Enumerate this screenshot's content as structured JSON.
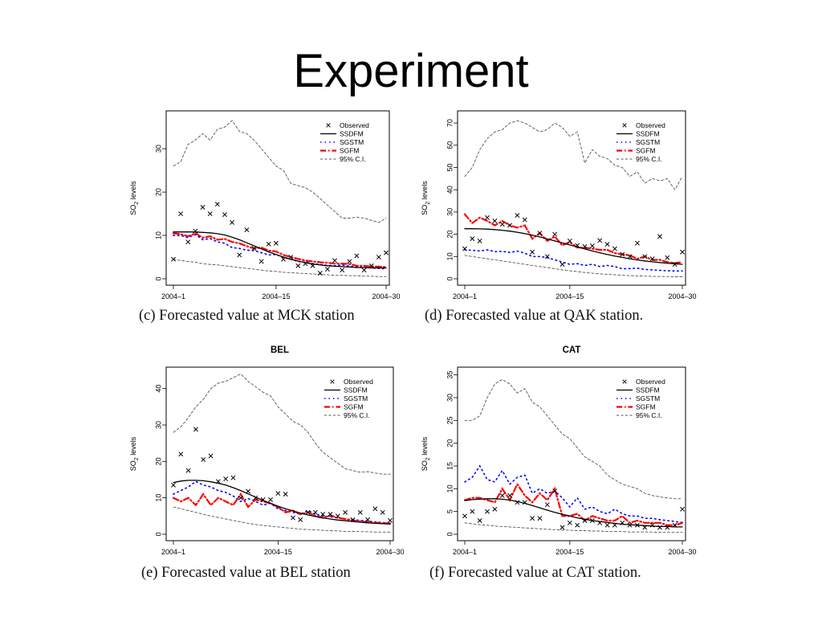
{
  "slide": {
    "title": "Experiment"
  },
  "chart_data": [
    {
      "type": "line",
      "panel_title": "",
      "caption": "(c) Forecasted value at MCK station",
      "ylabel_main": "SO",
      "ylabel_sub": "2",
      "ylabel_rest": " levels",
      "xlim": [
        1,
        30
      ],
      "ylim": [
        0,
        38
      ],
      "yticks": [
        0,
        10,
        20,
        30
      ],
      "xticks": [
        1,
        15,
        30
      ],
      "xticklabels": [
        "2004–1",
        "2004–15",
        "2004–30"
      ],
      "legend_position": "top-right",
      "legend": [
        "Observed",
        "SSDFM",
        "SGSTM",
        "SGFM",
        "95% C.I."
      ],
      "colors": {
        "SSDFM": "#000000",
        "SGSTM": "#0000ff",
        "SGFM": "#ff0000",
        "CI": "#555555",
        "Observed": "#000000"
      },
      "series": [
        {
          "name": "Observed",
          "kind": "points",
          "values": [
            4.5,
            15,
            8.5,
            11,
            16.5,
            15,
            17.2,
            14.8,
            13,
            5.5,
            11.3,
            7,
            4,
            8,
            8.2,
            4.5,
            5,
            3,
            3.5,
            3,
            1.3,
            2.2,
            4.2,
            2,
            4,
            5.3,
            2,
            3,
            5,
            6
          ]
        },
        {
          "name": "SSDFM",
          "kind": "line",
          "values": [
            10.8,
            10.8,
            10.8,
            10.8,
            10.7,
            10.6,
            10.4,
            10.1,
            9.6,
            9.0,
            8.3,
            7.6,
            6.9,
            6.2,
            5.6,
            5.0,
            4.5,
            4.1,
            3.7,
            3.4,
            3.2,
            3.0,
            2.9,
            2.8,
            2.7,
            2.6,
            2.6,
            2.5,
            2.5,
            2.5
          ]
        },
        {
          "name": "SGSTM",
          "kind": "line",
          "values": [
            10,
            10,
            9.5,
            10.2,
            9,
            9.3,
            8.5,
            8.2,
            7.2,
            7.0,
            6.6,
            6.5,
            6.0,
            5.5,
            5.6,
            4.9,
            4.5,
            4.0,
            3.8,
            3.5,
            3.3,
            3.1,
            3.0,
            3.2,
            2.9,
            2.7,
            2.6,
            2.5,
            2.4,
            2.3
          ]
        },
        {
          "name": "SGFM",
          "kind": "line",
          "values": [
            10.5,
            10.3,
            9.8,
            10.5,
            9.5,
            9.8,
            9.0,
            9.2,
            8.5,
            8.2,
            7.5,
            7.0,
            7.2,
            6.5,
            6.3,
            5.5,
            5.0,
            4.6,
            4.2,
            4.0,
            3.8,
            3.7,
            3.5,
            3.5,
            3.4,
            3.0,
            3.0,
            2.8,
            2.8,
            2.7
          ]
        },
        {
          "name": "95% C.I.",
          "kind": "line",
          "values": [
            26,
            27,
            31,
            32,
            33.5,
            32,
            34.5,
            35,
            36.5,
            34,
            33.5,
            32,
            30,
            28,
            26,
            25,
            22,
            21.5,
            21,
            20,
            18.5,
            17,
            15.5,
            14,
            14,
            14.2,
            14,
            13.5,
            13,
            14
          ]
        },
        {
          "name": "95% C.I.",
          "kind": "line",
          "values": [
            4.5,
            4.2,
            4.0,
            3.8,
            3.5,
            3.3,
            3.2,
            3.0,
            2.8,
            2.6,
            2.4,
            2.2,
            2.0,
            1.8,
            1.7,
            1.5,
            1.4,
            1.3,
            1.2,
            1.1,
            1.0,
            0.9,
            0.8,
            0.8,
            0.7,
            0.7,
            0.6,
            0.6,
            0.5,
            0.5
          ]
        }
      ]
    },
    {
      "type": "line",
      "panel_title": "",
      "caption": "(d) Forecasted value at QAK station.",
      "ylabel_main": "SO",
      "ylabel_sub": "2",
      "ylabel_rest": " levels",
      "xlim": [
        1,
        30
      ],
      "ylim": [
        0,
        74
      ],
      "yticks": [
        0,
        10,
        20,
        30,
        40,
        50,
        60,
        70
      ],
      "xticks": [
        1,
        15,
        30
      ],
      "xticklabels": [
        "2004–1",
        "2004–15",
        "2004–30"
      ],
      "legend_position": "top-right",
      "legend": [
        "Observed",
        "SSDFM",
        "SGSTM",
        "SGFM",
        "95% C.I."
      ],
      "colors": {
        "SSDFM": "#000000",
        "SGSTM": "#0000ff",
        "SGFM": "#ff0000",
        "CI": "#555555",
        "Observed": "#000000"
      },
      "series": [
        {
          "name": "Observed",
          "kind": "points",
          "values": [
            13.5,
            18,
            17,
            27.5,
            26,
            24.5,
            24,
            28.5,
            26.5,
            12,
            20.5,
            10,
            20,
            6.5,
            17,
            15,
            14.5,
            14.8,
            17.2,
            15.5,
            13.5,
            11,
            10,
            16,
            10,
            9,
            19,
            9.5,
            6.5,
            12
          ]
        },
        {
          "name": "SSDFM",
          "kind": "line",
          "values": [
            22.5,
            22.5,
            22.4,
            22.3,
            22.1,
            21.8,
            21.4,
            20.9,
            20.3,
            19.6,
            18.8,
            17.9,
            17.0,
            16.1,
            15.2,
            14.3,
            13.4,
            12.5,
            11.7,
            10.9,
            10.2,
            9.6,
            9.0,
            8.5,
            8.0,
            7.6,
            7.3,
            7.0,
            6.7,
            6.5
          ]
        },
        {
          "name": "SGSTM",
          "kind": "line",
          "values": [
            13,
            12.8,
            12.5,
            13,
            12.2,
            12.3,
            11.8,
            12.4,
            11.5,
            10,
            10,
            9.5,
            8.5,
            7.5,
            6.5,
            6.8,
            6,
            6.5,
            5.5,
            6,
            5.5,
            4.5,
            4.6,
            4.8,
            4.2,
            4.0,
            3.8,
            3.6,
            3.5,
            3.5
          ]
        },
        {
          "name": "SGFM",
          "kind": "line",
          "values": [
            29,
            25,
            27.5,
            26,
            24,
            26,
            24,
            23,
            24,
            18,
            20.5,
            17,
            19,
            15,
            16.5,
            14,
            14,
            13.5,
            13,
            13,
            11.5,
            11,
            10.5,
            9,
            10,
            8.5,
            8.5,
            7.5,
            7,
            7.5
          ]
        },
        {
          "name": "95% C.I.",
          "kind": "line",
          "values": [
            46,
            50,
            58,
            63,
            66,
            67,
            70,
            71,
            70,
            68,
            66,
            67,
            70,
            68,
            64,
            66,
            52,
            58,
            55,
            54,
            51,
            50,
            46,
            48,
            43,
            45,
            44,
            45,
            40,
            46
          ]
        },
        {
          "name": "95% C.I.",
          "kind": "line",
          "values": [
            10.5,
            10.0,
            9.5,
            9.0,
            8.5,
            8.0,
            7.5,
            7.0,
            6.5,
            6.0,
            5.5,
            5.0,
            4.5,
            4.0,
            3.6,
            3.2,
            2.8,
            2.5,
            2.2,
            2.0,
            1.8,
            1.6,
            1.4,
            1.3,
            1.2,
            1.1,
            1.0,
            1.0,
            0.9,
            0.9
          ]
        }
      ]
    },
    {
      "type": "line",
      "panel_title": "BEL",
      "caption": "(e) Forecasted value at BEL station",
      "ylabel_main": "SO",
      "ylabel_sub": "2",
      "ylabel_rest": " levels",
      "xlim": [
        1,
        30
      ],
      "ylim": [
        0,
        45
      ],
      "yticks": [
        0,
        10,
        20,
        30,
        40
      ],
      "xticks": [
        1,
        15,
        30
      ],
      "xticklabels": [
        "2004–1",
        "2004–15",
        "2004–30"
      ],
      "legend_position": "top-right",
      "legend": [
        "Observed",
        "SSDFM",
        "SGSTM",
        "SGFM",
        "95% C.I."
      ],
      "colors": {
        "SSDFM": "#000000",
        "SGSTM": "#0000ff",
        "SGFM": "#ff0000",
        "CI": "#555555",
        "Observed": "#000000"
      },
      "series": [
        {
          "name": "Observed",
          "kind": "points",
          "values": [
            13.5,
            22,
            17.5,
            28.8,
            20.5,
            21.5,
            14.5,
            15.2,
            15.5,
            10,
            11.8,
            10,
            9.5,
            9.5,
            11.2,
            11,
            4.5,
            4,
            6,
            6,
            5.5,
            5.5,
            5,
            6,
            4,
            6,
            4,
            7,
            6,
            3.8
          ]
        },
        {
          "name": "SSDFM",
          "kind": "line",
          "values": [
            14.2,
            14.6,
            14.8,
            14.8,
            14.7,
            14.4,
            14.0,
            13.5,
            12.8,
            12.0,
            11.1,
            10.2,
            9.3,
            8.5,
            7.7,
            7.0,
            6.4,
            5.8,
            5.3,
            4.9,
            4.5,
            4.2,
            3.9,
            3.7,
            3.5,
            3.3,
            3.1,
            3.0,
            2.9,
            2.8
          ]
        },
        {
          "name": "SGSTM",
          "kind": "line",
          "values": [
            11,
            12,
            13,
            14.5,
            13.5,
            13,
            12,
            11.5,
            10.5,
            9,
            9.8,
            9,
            8,
            8.5,
            7,
            6.5,
            6,
            5.5,
            6.5,
            5.5,
            5,
            4.8,
            4.5,
            4.2,
            4.0,
            3.8,
            3.6,
            3.4,
            3.2,
            3.0
          ]
        },
        {
          "name": "SGFM",
          "kind": "line",
          "values": [
            10,
            9,
            10,
            8,
            11,
            8,
            10,
            9,
            8,
            11,
            7.5,
            9.5,
            9,
            8.5,
            7.5,
            6,
            6.5,
            5.5,
            6,
            5,
            4.5,
            5.2,
            4.5,
            4.2,
            3.8,
            3.5,
            3.3,
            3.2,
            3.0,
            3.0
          ]
        },
        {
          "name": "95% C.I.",
          "kind": "line",
          "values": [
            28,
            29.5,
            32,
            35,
            37,
            40,
            41.5,
            42,
            43,
            44,
            42,
            40.5,
            39,
            38,
            35,
            33,
            31,
            30,
            28,
            25,
            22.5,
            21,
            19.5,
            18,
            17.5,
            17,
            17.2,
            16.8,
            16.5,
            16.5
          ]
        },
        {
          "name": "95% C.I.",
          "kind": "line",
          "values": [
            7.5,
            7.0,
            6.5,
            6.0,
            5.5,
            5.0,
            4.6,
            4.2,
            3.8,
            3.4,
            3.0,
            2.7,
            2.4,
            2.2,
            2.0,
            1.8,
            1.6,
            1.4,
            1.3,
            1.2,
            1.1,
            1.0,
            0.9,
            0.8,
            0.8,
            0.7,
            0.7,
            0.6,
            0.6,
            0.6
          ]
        }
      ]
    },
    {
      "type": "line",
      "panel_title": "CAT",
      "caption": "(f) Forecasted value at CAT station.",
      "ylabel_main": "SO",
      "ylabel_sub": "2",
      "ylabel_rest": " levels",
      "xlim": [
        1,
        30
      ],
      "ylim": [
        0,
        36
      ],
      "yticks": [
        0,
        5,
        10,
        15,
        20,
        25,
        30,
        35
      ],
      "xticks": [
        1,
        15,
        30
      ],
      "xticklabels": [
        "2004–1",
        "2004–15",
        "2004–30"
      ],
      "legend_position": "top-right",
      "legend": [
        "Observed",
        "SSDFM",
        "SGSTM",
        "SGFM",
        "95% C.I."
      ],
      "colors": {
        "SSDFM": "#000000",
        "SGSTM": "#0000ff",
        "SGFM": "#ff0000",
        "CI": "#555555",
        "Observed": "#000000"
      },
      "series": [
        {
          "name": "Observed",
          "kind": "points",
          "values": [
            4,
            5,
            3,
            5,
            5.5,
            8.5,
            8.5,
            7,
            7,
            3.5,
            3.5,
            6.5,
            9.5,
            1.5,
            2.5,
            2,
            3,
            3,
            2.5,
            2,
            2,
            2.5,
            2,
            2,
            1.5,
            2,
            1.5,
            1.5,
            2,
            5.5
          ]
        },
        {
          "name": "SSDFM",
          "kind": "line",
          "values": [
            7.4,
            7.6,
            7.7,
            7.8,
            7.8,
            7.7,
            7.5,
            7.2,
            6.8,
            6.3,
            5.8,
            5.3,
            4.8,
            4.4,
            4.0,
            3.6,
            3.3,
            3.0,
            2.8,
            2.6,
            2.4,
            2.2,
            2.1,
            2.0,
            1.9,
            1.8,
            1.7,
            1.7,
            1.6,
            1.6
          ]
        },
        {
          "name": "SGSTM",
          "kind": "line",
          "values": [
            11.5,
            12.5,
            15,
            12,
            11.5,
            14,
            11,
            12.5,
            13,
            9,
            10,
            9,
            9.5,
            8,
            6,
            8,
            5.5,
            6,
            5,
            4.5,
            5.5,
            4.5,
            4,
            4,
            3.5,
            3.5,
            3.2,
            3.0,
            2.8,
            2.6
          ]
        },
        {
          "name": "SGFM",
          "kind": "line",
          "values": [
            7.5,
            8,
            8,
            7.5,
            7,
            10,
            7.5,
            11,
            8.5,
            7,
            9,
            7.5,
            10,
            4,
            4,
            4.5,
            3,
            4,
            3.5,
            3,
            3,
            4,
            2.5,
            3,
            2.5,
            2.5,
            2.5,
            2,
            2,
            2.5
          ]
        },
        {
          "name": "95% C.I.",
          "kind": "line",
          "values": [
            25,
            25,
            26,
            30,
            33,
            34,
            33,
            31,
            32,
            29,
            28,
            26,
            24,
            22,
            21,
            19,
            17,
            16,
            15,
            13,
            12,
            11,
            10.5,
            10,
            9,
            8.5,
            8.2,
            8.0,
            7.8,
            7.8
          ]
        },
        {
          "name": "95% C.I.",
          "kind": "line",
          "values": [
            2.5,
            2.3,
            2.1,
            2.0,
            1.8,
            1.7,
            1.6,
            1.5,
            1.4,
            1.3,
            1.2,
            1.1,
            1.0,
            0.9,
            0.9,
            0.8,
            0.8,
            0.7,
            0.7,
            0.6,
            0.6,
            0.6,
            0.5,
            0.5,
            0.5,
            0.5,
            0.4,
            0.4,
            0.4,
            0.4
          ]
        }
      ]
    }
  ]
}
